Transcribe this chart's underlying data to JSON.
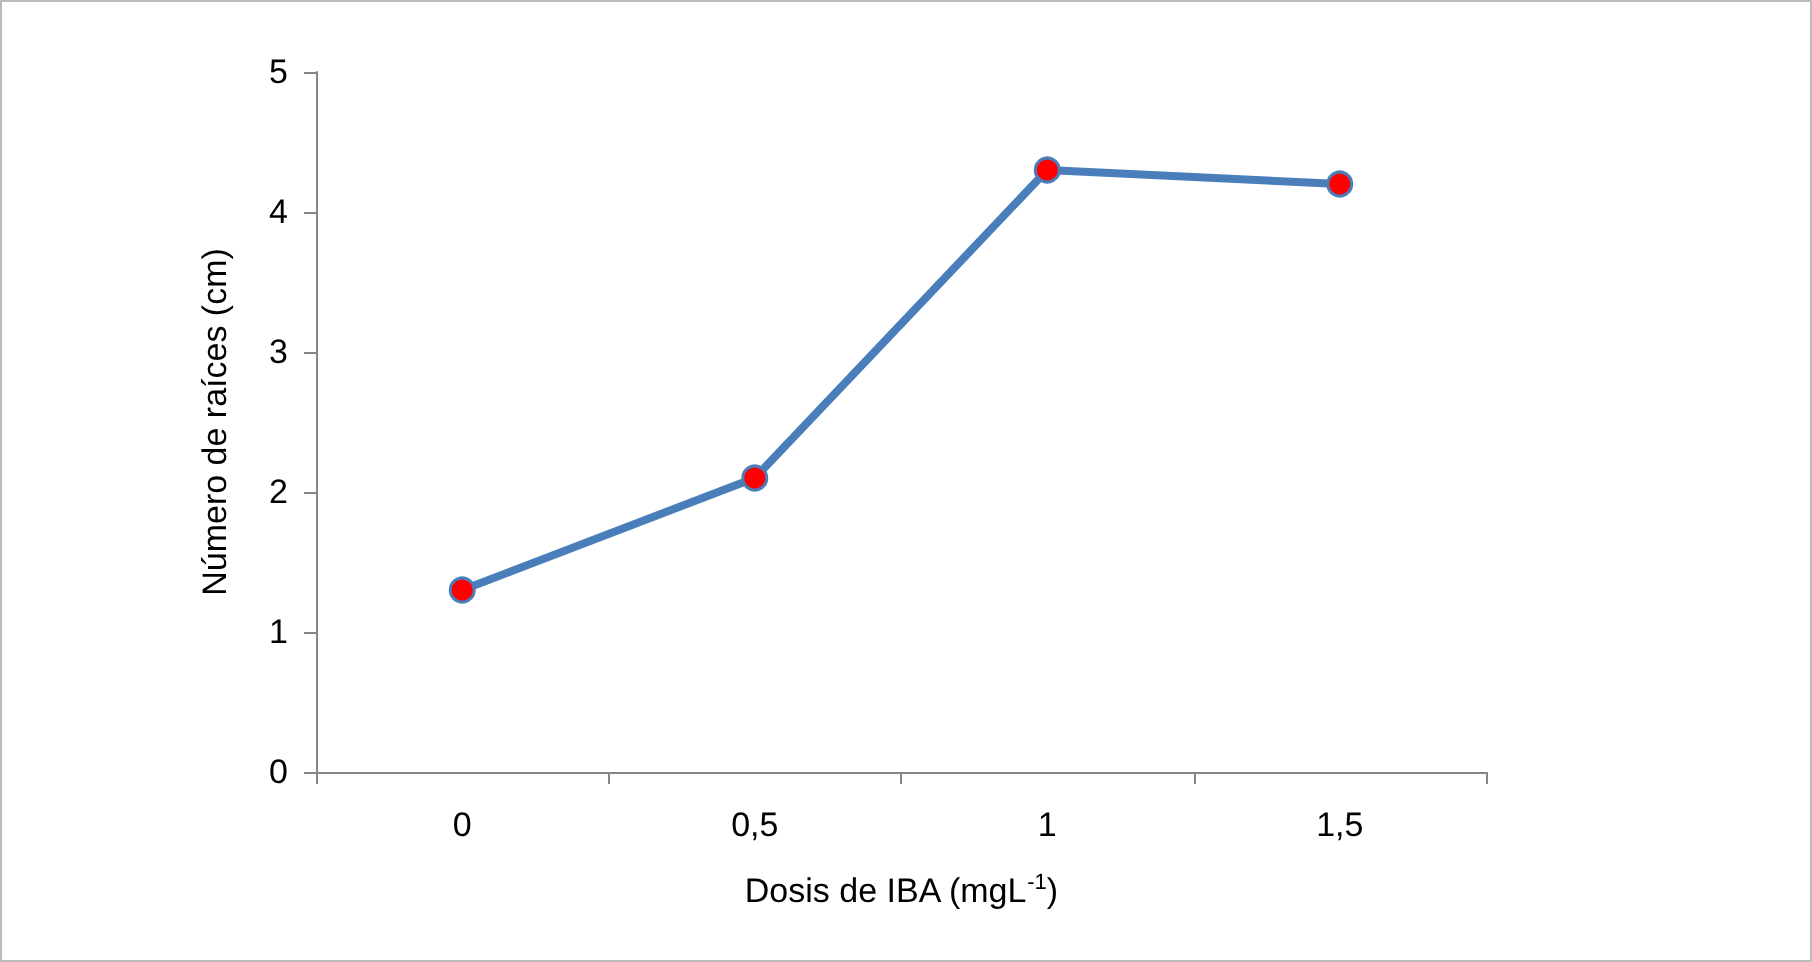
{
  "chart_data": {
    "type": "line",
    "xlabel": "Dosis de IBA (mgL$^{-1}$)",
    "ylabel": "Número de raíces (cm)",
    "categories": [
      "0",
      "0,5",
      "1",
      "1,5"
    ],
    "series": [
      {
        "color": "#4a7ebb",
        "colors": [
          "#ff0000",
          "#ff0000",
          "#ff0000",
          "#ff0000"
        ],
        "values": [
          1.3,
          2.1,
          4.3,
          4.2
        ]
      }
    ],
    "ylim": [
      0,
      5
    ],
    "yticks": [
      0,
      1,
      2,
      3,
      4,
      5
    ],
    "grid": false,
    "marker": "circle",
    "line_style": "solid"
  }
}
